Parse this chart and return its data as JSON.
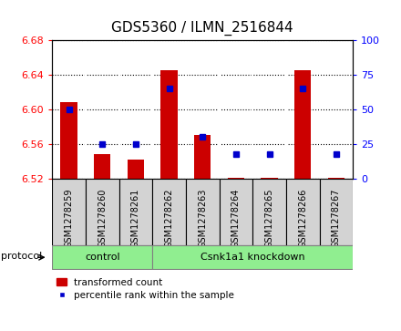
{
  "title": "GDS5360 / ILMN_2516844",
  "samples": [
    "GSM1278259",
    "GSM1278260",
    "GSM1278261",
    "GSM1278262",
    "GSM1278263",
    "GSM1278264",
    "GSM1278265",
    "GSM1278266",
    "GSM1278267"
  ],
  "transformed_count": [
    6.608,
    6.548,
    6.542,
    6.645,
    6.57,
    6.521,
    6.521,
    6.645,
    6.521
  ],
  "percentile_rank": [
    50,
    25,
    25,
    65,
    30,
    18,
    18,
    65,
    18
  ],
  "ylim_left": [
    6.52,
    6.68
  ],
  "ylim_right": [
    0,
    100
  ],
  "yticks_left": [
    6.52,
    6.56,
    6.6,
    6.64,
    6.68
  ],
  "yticks_right": [
    0,
    25,
    50,
    75,
    100
  ],
  "ctrl_group": {
    "label": "control",
    "start": 0,
    "end": 3
  },
  "kd_group": {
    "label": "Csnk1a1 knockdown",
    "start": 3,
    "end": 9
  },
  "bar_color": "#cc0000",
  "dot_color": "#0000cc",
  "base_value": 6.52,
  "bar_width": 0.5,
  "plot_bg_color": "#ffffff",
  "col_bg_color": "#d3d3d3",
  "group_bar_color": "#90EE90",
  "protocol_label": "protocol",
  "title_fontsize": 11,
  "legend_items": [
    {
      "label": "transformed count",
      "color": "#cc0000",
      "type": "patch"
    },
    {
      "label": "percentile rank within the sample",
      "color": "#0000cc",
      "type": "dot"
    }
  ]
}
